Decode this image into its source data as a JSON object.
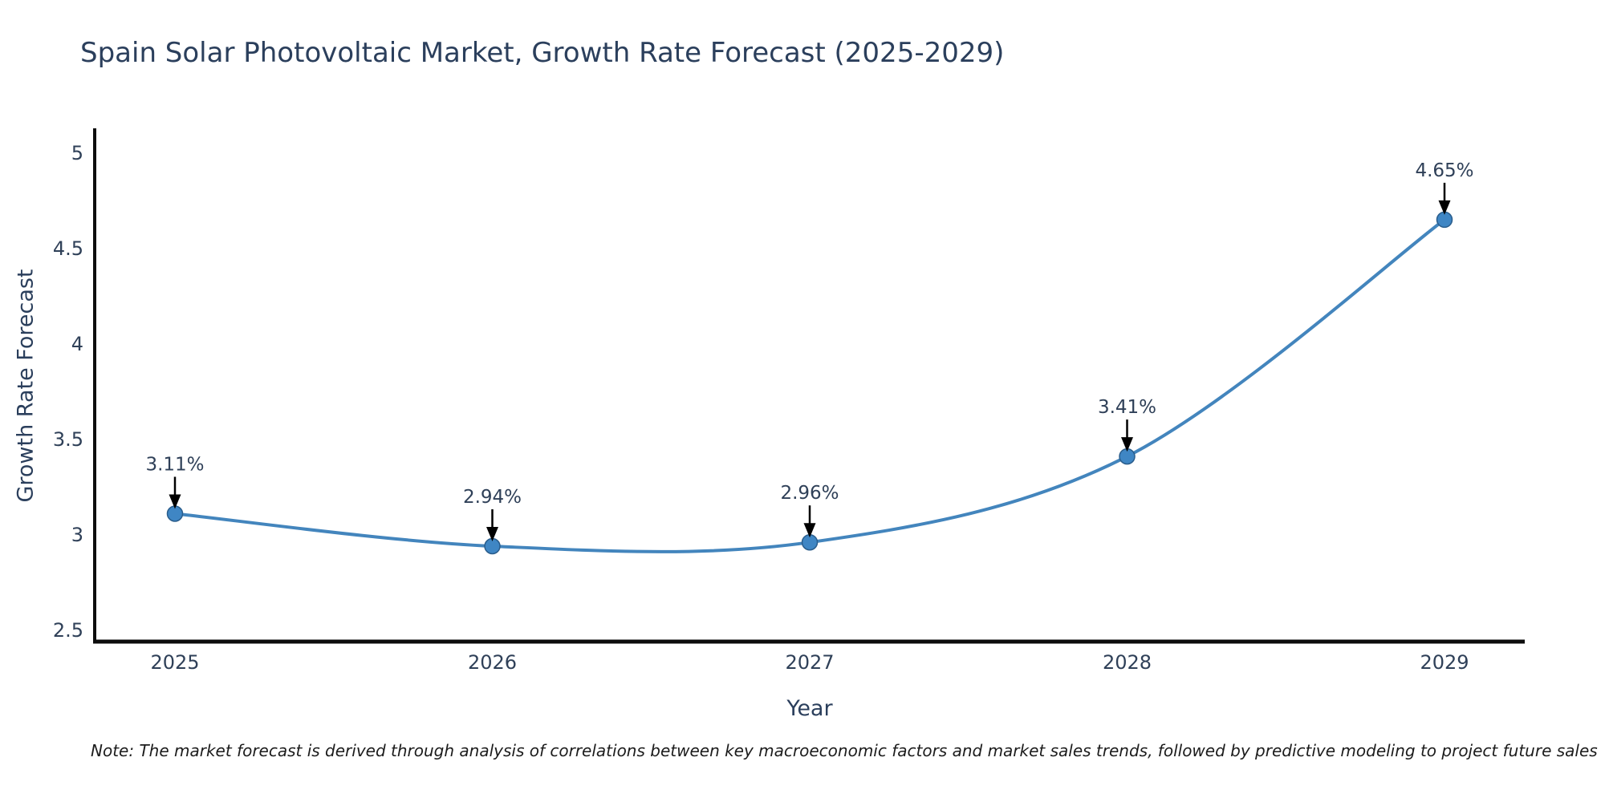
{
  "chart_data": {
    "type": "line",
    "title": "Spain Solar Photovoltaic Market, Growth Rate Forecast (2025-2029)",
    "xlabel": "Year",
    "ylabel": "Growth Rate Forecast",
    "categories": [
      "2025",
      "2026",
      "2027",
      "2028",
      "2029"
    ],
    "series": [
      {
        "name": "Growth Rate Forecast",
        "values": [
          3.11,
          2.94,
          2.96,
          3.41,
          4.65
        ],
        "point_labels": [
          "3.11%",
          "2.94%",
          "2.96%",
          "3.41%",
          "4.65%"
        ]
      }
    ],
    "yticks": [
      2.5,
      3,
      3.5,
      4,
      4.5,
      5
    ],
    "ylim": [
      2.44,
      5.12
    ],
    "grid": false,
    "legend_position": "none",
    "line_shape": "spline",
    "colors": {
      "line": "#4385bd",
      "marker_fill": "#3f86c4",
      "marker_edge": "#2a5d8c",
      "annotation_arrow": "#000000",
      "axis_line": "#0d0d0d",
      "title_text": "#2b3f5c",
      "tick_text": "#2f4058"
    },
    "note": "Note: The market forecast is derived through analysis of correlations between key macroeconomic factors and market sales trends, followed by predictive modeling to project future sales"
  }
}
